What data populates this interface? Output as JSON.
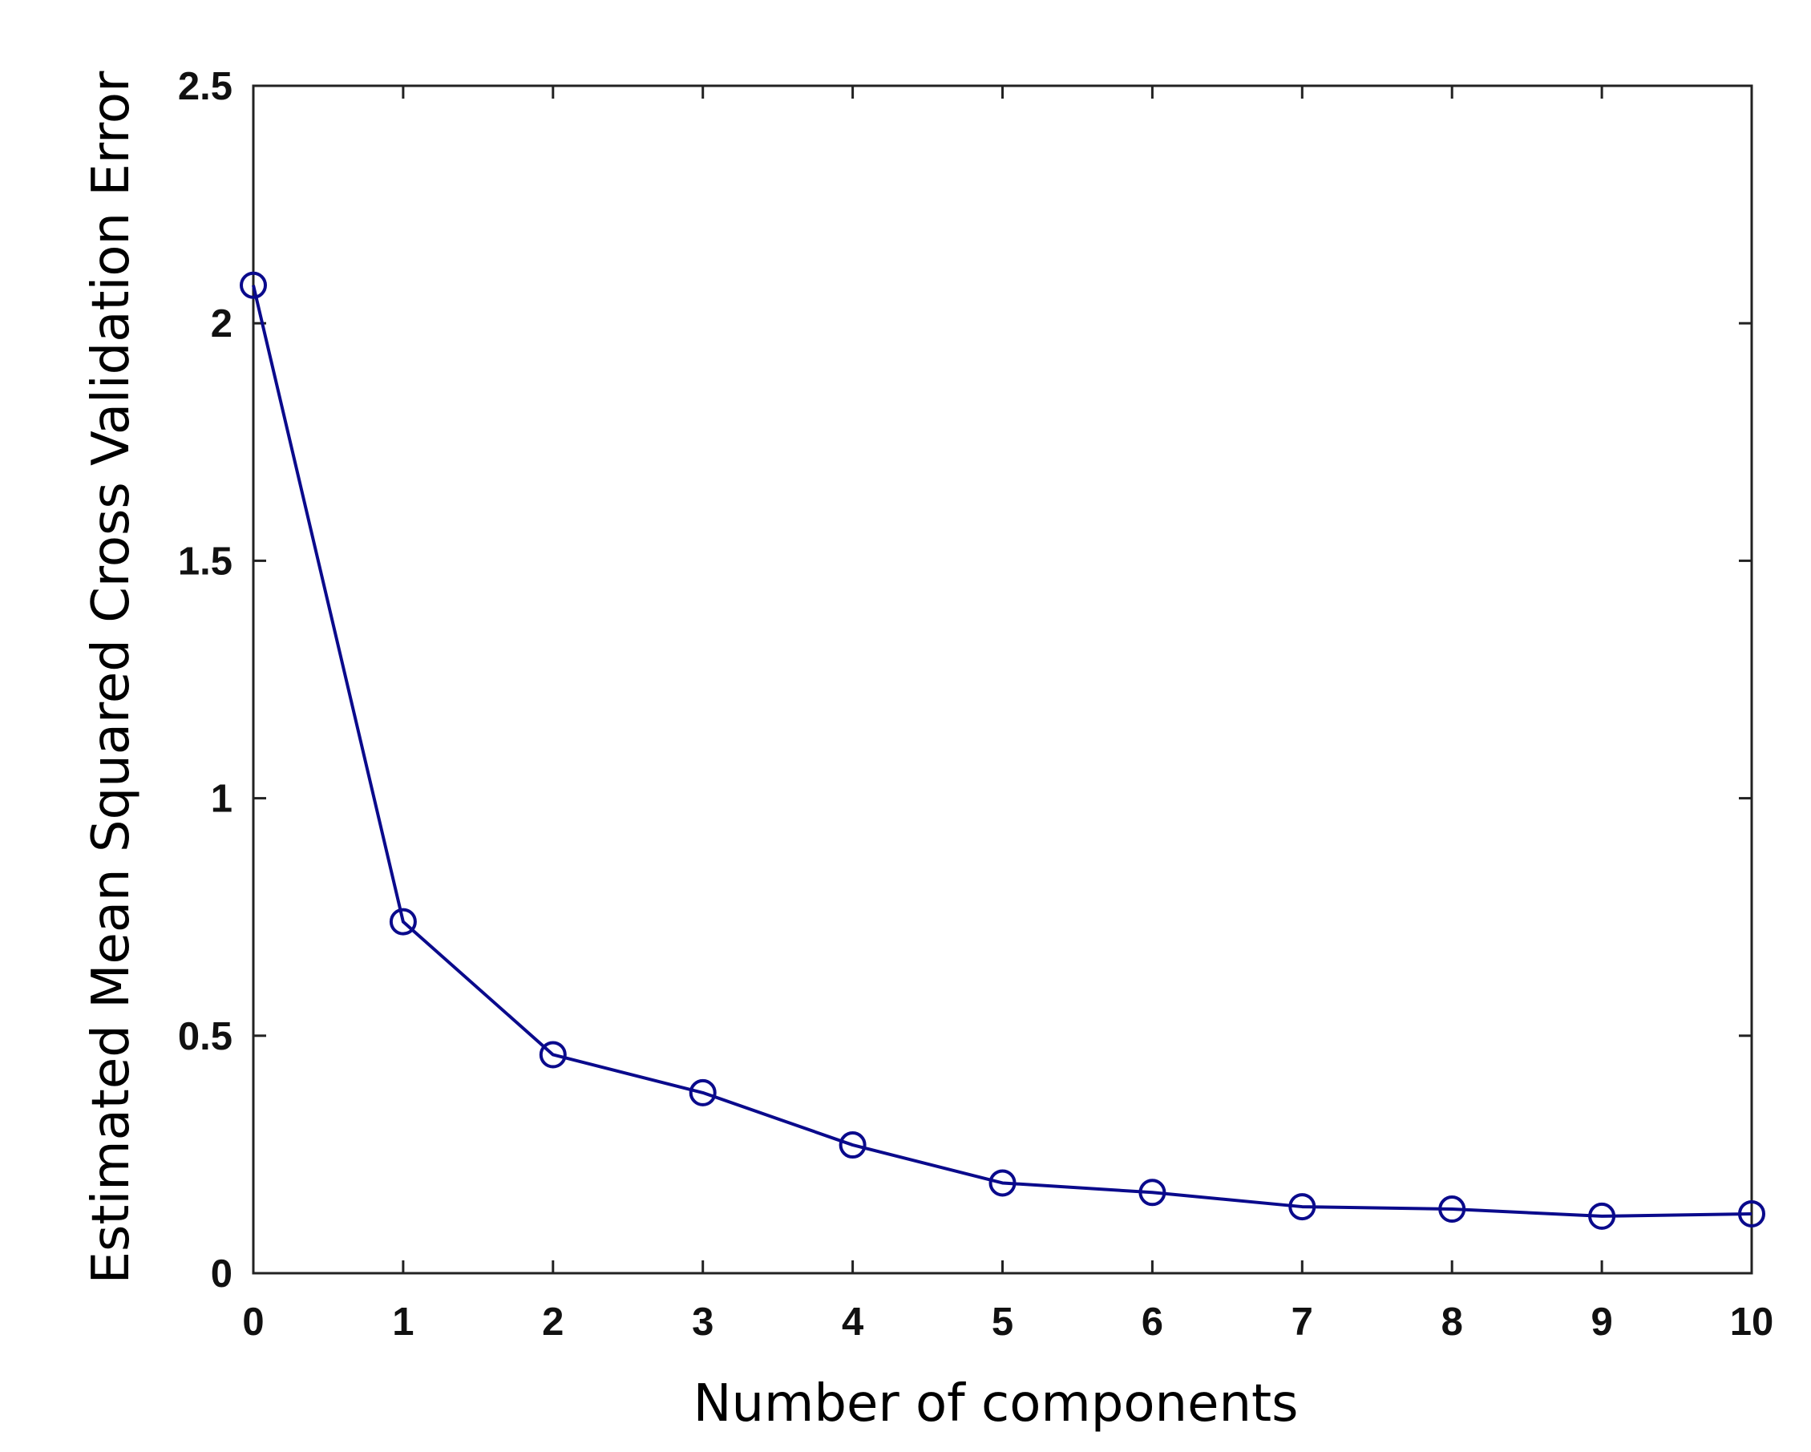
{
  "chart_data": {
    "type": "line",
    "title": "",
    "xlabel": "Number of components",
    "ylabel": "Estimated Mean Squared Cross Validation Error",
    "xlim": [
      0,
      10
    ],
    "ylim": [
      0,
      2.5
    ],
    "xticks": [
      0,
      1,
      2,
      3,
      4,
      5,
      6,
      7,
      8,
      9,
      10
    ],
    "xtick_labels": [
      "0",
      "1",
      "2",
      "3",
      "4",
      "5",
      "6",
      "7",
      "8",
      "9",
      "10"
    ],
    "yticks": [
      0,
      0.5,
      1,
      1.5,
      2,
      2.5
    ],
    "ytick_labels": [
      "0",
      "0.5",
      "1",
      "1.5",
      "2",
      "2.5"
    ],
    "grid": false,
    "legend": "none",
    "series": [
      {
        "x": [
          0,
          1,
          2,
          3,
          4,
          5,
          6,
          7,
          8,
          9,
          10
        ],
        "y": [
          2.08,
          0.74,
          0.46,
          0.38,
          0.27,
          0.19,
          0.17,
          0.14,
          0.135,
          0.12,
          0.125
        ],
        "marker": "circle",
        "color": "#0a0a8c"
      }
    ],
    "colors": {
      "line": "#0a0a8c",
      "axes": "#222222",
      "background": "#ffffff"
    }
  }
}
